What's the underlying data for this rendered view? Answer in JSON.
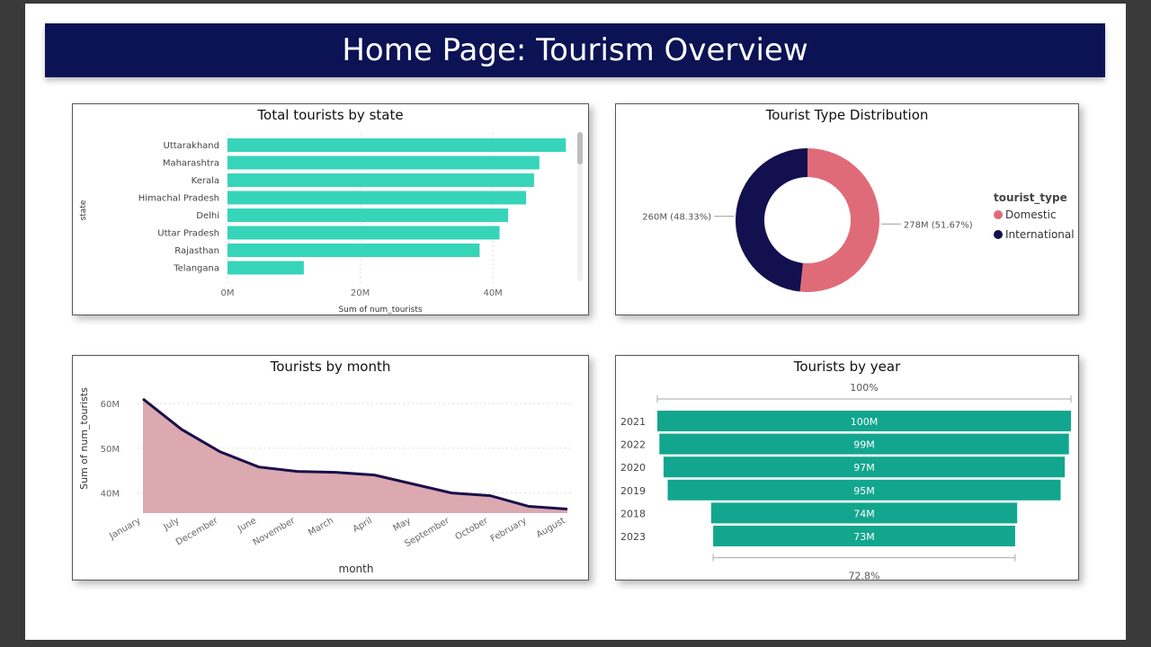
{
  "header": {
    "title": "Home Page: Tourism Overview"
  },
  "colors": {
    "header_bg": "#0b1355",
    "bar": "#36d4b9",
    "domestic": "#e06b78",
    "international": "#13104f",
    "area_fill": "#dca9b1",
    "area_line": "#1a0f4a",
    "funnel": "#12a68e"
  },
  "chart_data": [
    {
      "id": "state",
      "type": "bar",
      "orientation": "horizontal",
      "title": "Total tourists by state",
      "xlabel": "Sum of num_tourists",
      "ylabel": "state",
      "categories": [
        "Uttarakhand",
        "Maharashtra",
        "Kerala",
        "Himachal Pradesh",
        "Delhi",
        "Uttar Pradesh",
        "Rajasthan",
        "Telangana"
      ],
      "values": [
        51,
        47,
        46.2,
        45,
        42.3,
        41,
        38,
        11.5
      ],
      "unit": "M",
      "xlim": [
        0,
        51.5
      ],
      "xticks": [
        0,
        20,
        40
      ],
      "xtick_labels": [
        "0M",
        "20M",
        "40M"
      ],
      "grid": true
    },
    {
      "id": "type",
      "type": "pie",
      "donut": true,
      "title": "Tourist Type Distribution",
      "legend_title": "tourist_type",
      "legend_position": "right",
      "slices": [
        {
          "name": "Domestic",
          "value": 278,
          "label": "278M (51.67%)"
        },
        {
          "name": "International",
          "value": 260,
          "label": "260M (48.33%)"
        }
      ]
    },
    {
      "id": "month",
      "type": "area",
      "title": "Tourists by month",
      "xlabel": "month",
      "ylabel": "Sum of num_tourists",
      "x": [
        "January",
        "July",
        "December",
        "June",
        "November",
        "March",
        "April",
        "May",
        "September",
        "October",
        "February",
        "August"
      ],
      "values": [
        61.0,
        54.2,
        49.2,
        45.8,
        44.8,
        44.6,
        44.0,
        42.0,
        40.0,
        39.4,
        37.0,
        36.4
      ],
      "ylim": [
        35.5,
        63
      ],
      "yticks": [
        40,
        50,
        60
      ],
      "ytick_labels": [
        "40M",
        "50M",
        "60M"
      ],
      "grid": true
    },
    {
      "id": "year",
      "type": "bar",
      "variant": "funnel",
      "title": "Tourists by year",
      "categories": [
        "2021",
        "2022",
        "2020",
        "2019",
        "2018",
        "2023"
      ],
      "values": [
        100,
        99,
        97,
        95,
        74,
        73
      ],
      "labels": [
        "100M",
        "99M",
        "97M",
        "95M",
        "74M",
        "73M"
      ],
      "top_percent": "100%",
      "bottom_percent": "72.8%"
    }
  ]
}
